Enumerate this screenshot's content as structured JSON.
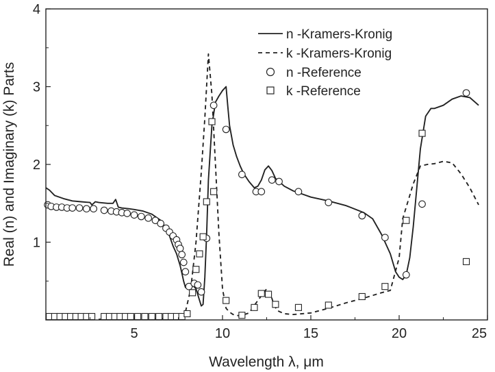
{
  "chart_data": {
    "type": "line",
    "xlabel": "Wavelength λ, μm",
    "ylabel": "Real (n) and Imaginary (k) Parts",
    "xlim": [
      0,
      25
    ],
    "ylim": [
      0,
      4
    ],
    "xticks": [
      5,
      10,
      15,
      20,
      25
    ],
    "xtick_labels": [
      "5",
      "10",
      "15",
      "20",
      "25"
    ],
    "yticks": [
      1,
      2,
      3,
      4
    ],
    "ytick_labels": [
      "1",
      "2",
      "3",
      "4"
    ],
    "grid": false,
    "legend_position": "top-right",
    "legend": [
      {
        "label": "n -Kramers-Kronig",
        "style": "solid-line"
      },
      {
        "label": "k -Kramers-Kronig",
        "style": "dashed-line"
      },
      {
        "label": "n -Reference",
        "style": "circle"
      },
      {
        "label": "k -Reference",
        "style": "square"
      }
    ],
    "series": [
      {
        "name": "n -Kramers-Kronig",
        "style": "solid",
        "x": [
          0.0,
          0.2,
          0.5,
          1.0,
          1.5,
          2.0,
          2.5,
          2.6,
          2.7,
          2.8,
          3.0,
          3.5,
          3.8,
          3.95,
          4.1,
          4.3,
          4.7,
          5.0,
          5.5,
          6.0,
          6.5,
          6.8,
          7.0,
          7.2,
          7.4,
          7.6,
          7.7,
          7.8,
          7.9,
          8.0,
          8.1,
          8.3,
          8.5,
          8.7,
          8.8,
          8.9,
          9.0,
          9.1,
          9.2,
          9.4,
          9.6,
          9.8,
          10.0,
          10.2,
          10.3,
          10.4,
          10.6,
          10.8,
          11.0,
          11.2,
          11.5,
          11.8,
          12.0,
          12.2,
          12.4,
          12.6,
          12.8,
          13.0,
          13.5,
          14.0,
          14.5,
          15.0,
          16.0,
          17.0,
          18.0,
          18.5,
          19.0,
          19.5,
          19.8,
          20.0,
          20.2,
          20.4,
          20.6,
          20.8,
          21.0,
          21.2,
          21.5,
          21.8,
          22.0,
          22.5,
          23.0,
          23.5,
          24.0,
          24.5
        ],
        "y": [
          1.7,
          1.67,
          1.6,
          1.56,
          1.53,
          1.52,
          1.51,
          1.48,
          1.5,
          1.52,
          1.51,
          1.5,
          1.5,
          1.55,
          1.45,
          1.44,
          1.43,
          1.42,
          1.4,
          1.36,
          1.28,
          1.18,
          1.08,
          0.95,
          0.85,
          0.7,
          0.6,
          0.5,
          0.42,
          0.4,
          0.42,
          0.45,
          0.4,
          0.25,
          0.18,
          0.2,
          0.55,
          1.1,
          1.8,
          2.5,
          2.8,
          2.88,
          2.95,
          3.0,
          2.75,
          2.5,
          2.25,
          2.1,
          1.98,
          1.88,
          1.78,
          1.7,
          1.72,
          1.8,
          1.93,
          1.98,
          1.92,
          1.82,
          1.72,
          1.66,
          1.62,
          1.58,
          1.53,
          1.47,
          1.38,
          1.3,
          1.1,
          0.85,
          0.62,
          0.55,
          0.52,
          0.58,
          0.8,
          1.2,
          1.7,
          2.2,
          2.62,
          2.72,
          2.72,
          2.76,
          2.84,
          2.88,
          2.86,
          2.76
        ]
      },
      {
        "name": "k -Kramers-Kronig",
        "style": "dashed",
        "x": [
          0.0,
          7.6,
          7.9,
          8.2,
          8.5,
          8.8,
          9.0,
          9.2,
          9.4,
          9.6,
          9.8,
          10.0,
          10.2,
          10.4,
          10.6,
          11.0,
          11.5,
          12.0,
          12.3,
          12.5,
          12.7,
          12.9,
          13.1,
          13.5,
          14.0,
          15.0,
          16.0,
          17.0,
          18.0,
          19.0,
          19.5,
          20.0,
          20.2,
          20.4,
          20.8,
          21.2,
          21.6,
          22.0,
          22.5,
          23.0,
          23.5,
          24.0,
          24.5
        ],
        "y": [
          0.0,
          0.02,
          0.1,
          0.4,
          1.0,
          1.9,
          2.6,
          3.42,
          2.9,
          2.0,
          1.1,
          0.4,
          0.15,
          0.1,
          0.07,
          0.05,
          0.09,
          0.25,
          0.34,
          0.4,
          0.35,
          0.2,
          0.12,
          0.08,
          0.07,
          0.09,
          0.15,
          0.22,
          0.28,
          0.35,
          0.38,
          0.8,
          1.3,
          1.45,
          1.75,
          1.98,
          2.0,
          2.01,
          2.04,
          2.02,
          1.88,
          1.7,
          1.48
        ]
      },
      {
        "name": "n -Reference",
        "marker": "circle",
        "x": [
          0.1,
          0.3,
          0.6,
          0.9,
          1.2,
          1.5,
          1.9,
          2.3,
          2.7,
          3.3,
          3.7,
          4.0,
          4.3,
          4.6,
          5.0,
          5.4,
          5.8,
          6.2,
          6.5,
          6.8,
          7.0,
          7.2,
          7.4,
          7.5,
          7.6,
          7.7,
          7.8,
          7.9,
          8.1,
          8.4,
          8.6,
          8.8,
          9.1,
          9.5,
          10.2,
          11.1,
          11.9,
          12.2,
          12.8,
          13.2,
          14.3,
          16.0,
          17.9,
          19.2,
          20.4,
          21.3,
          23.8
        ],
        "y": [
          1.48,
          1.46,
          1.45,
          1.45,
          1.44,
          1.44,
          1.44,
          1.43,
          1.43,
          1.41,
          1.4,
          1.39,
          1.38,
          1.37,
          1.35,
          1.33,
          1.31,
          1.28,
          1.24,
          1.18,
          1.13,
          1.08,
          1.03,
          0.97,
          0.92,
          0.84,
          0.74,
          0.62,
          0.43,
          0.47,
          0.45,
          0.36,
          1.05,
          2.76,
          2.45,
          1.87,
          1.65,
          1.65,
          1.8,
          1.78,
          1.65,
          1.51,
          1.34,
          1.06,
          0.58,
          1.49,
          2.92
        ]
      },
      {
        "name": "k -Reference",
        "marker": "square",
        "x": [
          0.2,
          0.5,
          0.8,
          1.1,
          1.4,
          1.7,
          2.0,
          2.3,
          2.6,
          3.3,
          3.6,
          3.9,
          4.2,
          4.5,
          4.8,
          5.2,
          5.6,
          6.0,
          6.4,
          6.8,
          7.1,
          7.4,
          7.7,
          8.0,
          8.3,
          8.5,
          8.7,
          8.9,
          9.1,
          9.4,
          9.5,
          10.2,
          11.1,
          11.8,
          12.2,
          12.6,
          13.0,
          14.3,
          16.0,
          17.9,
          19.2,
          20.4,
          21.3,
          23.8
        ],
        "y": [
          0.0,
          0.0,
          0.0,
          0.0,
          0.0,
          0.0,
          0.0,
          0.0,
          0.0,
          0.0,
          0.0,
          0.0,
          0.0,
          0.0,
          0.0,
          0.0,
          0.0,
          0.0,
          0.0,
          0.0,
          0.01,
          0.02,
          0.04,
          0.08,
          0.35,
          0.65,
          0.85,
          1.07,
          1.52,
          2.55,
          1.65,
          0.25,
          0.06,
          0.16,
          0.34,
          0.33,
          0.2,
          0.16,
          0.19,
          0.3,
          0.43,
          1.28,
          2.4,
          0.75
        ]
      }
    ]
  }
}
